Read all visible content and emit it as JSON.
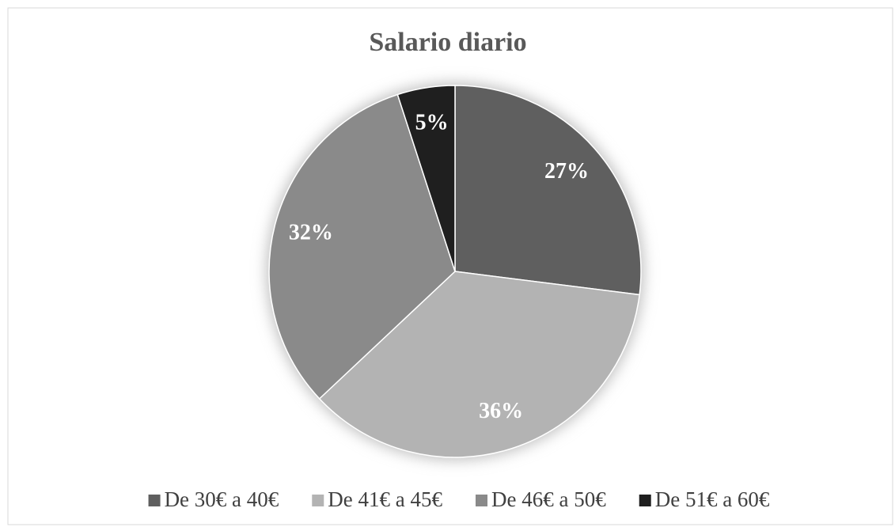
{
  "chart_data": {
    "type": "pie",
    "title": "Salario diario",
    "categories": [
      "De 30€ a 40€",
      "De 41€ a 45€",
      "De 46€ a 50€",
      "De 51€ a 60€"
    ],
    "values": [
      27,
      36,
      32,
      5
    ],
    "value_labels": [
      "27%",
      "36%",
      "32%",
      "5%"
    ],
    "colors": [
      "#5f5f5f",
      "#b3b3b3",
      "#8a8a8a",
      "#1f1f1f"
    ],
    "legend": "bottom"
  }
}
